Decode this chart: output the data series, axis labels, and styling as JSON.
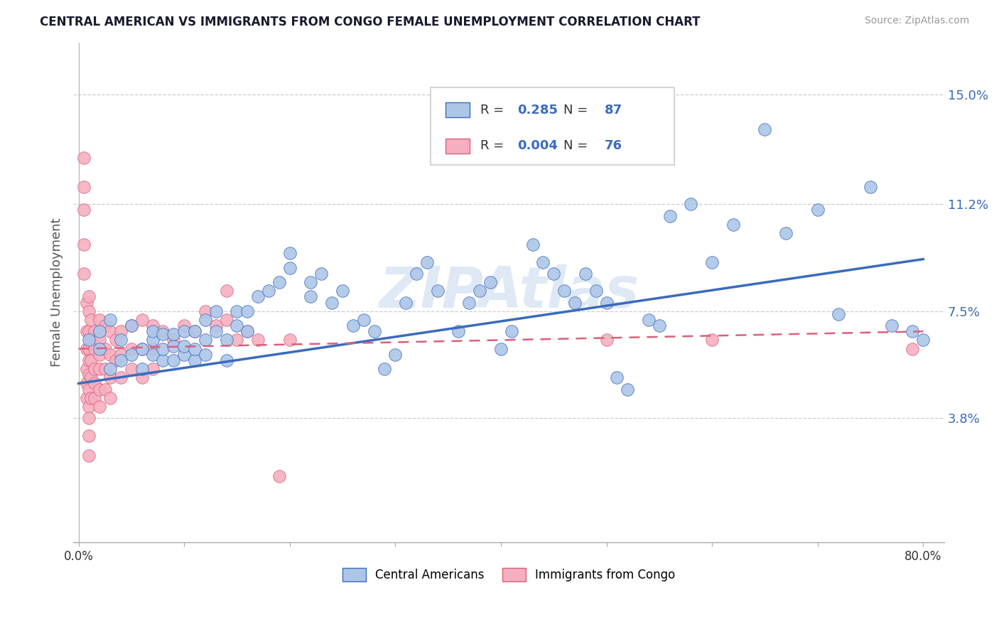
{
  "title": "CENTRAL AMERICAN VS IMMIGRANTS FROM CONGO FEMALE UNEMPLOYMENT CORRELATION CHART",
  "source": "Source: ZipAtlas.com",
  "ylabel": "Female Unemployment",
  "watermark": "ZIPAtlas",
  "series1_label": "Central Americans",
  "series2_label": "Immigrants from Congo",
  "series1_R": 0.285,
  "series1_N": 87,
  "series2_R": 0.004,
  "series2_N": 76,
  "series1_color": "#adc6e8",
  "series2_color": "#f5afc0",
  "trend1_color": "#3a6bbd",
  "trend2_color": "#d9607a",
  "background_color": "#ffffff",
  "grid_color": "#cccccc",
  "xlim": [
    -0.005,
    0.82
  ],
  "ylim": [
    -0.005,
    0.168
  ],
  "yticks": [
    0.038,
    0.075,
    0.112,
    0.15
  ],
  "ytick_labels": [
    "3.8%",
    "7.5%",
    "11.2%",
    "15.0%"
  ],
  "xtick_positions": [
    0.0,
    0.1,
    0.2,
    0.3,
    0.4,
    0.5,
    0.6,
    0.7,
    0.8
  ],
  "trend1_x_start": 0.0,
  "trend1_y_start": 0.05,
  "trend1_x_end": 0.8,
  "trend1_y_end": 0.093,
  "trend2_x_start": 0.0,
  "trend2_y_start": 0.062,
  "trend2_x_end": 0.8,
  "trend2_y_end": 0.068,
  "series1_x": [
    0.01,
    0.02,
    0.02,
    0.03,
    0.03,
    0.04,
    0.04,
    0.05,
    0.05,
    0.06,
    0.06,
    0.07,
    0.07,
    0.07,
    0.08,
    0.08,
    0.08,
    0.09,
    0.09,
    0.09,
    0.1,
    0.1,
    0.1,
    0.11,
    0.11,
    0.11,
    0.12,
    0.12,
    0.12,
    0.13,
    0.13,
    0.14,
    0.14,
    0.15,
    0.15,
    0.16,
    0.16,
    0.17,
    0.18,
    0.19,
    0.2,
    0.2,
    0.22,
    0.22,
    0.23,
    0.24,
    0.25,
    0.26,
    0.27,
    0.28,
    0.29,
    0.3,
    0.31,
    0.32,
    0.33,
    0.34,
    0.36,
    0.37,
    0.38,
    0.39,
    0.4,
    0.41,
    0.43,
    0.44,
    0.45,
    0.46,
    0.47,
    0.48,
    0.49,
    0.5,
    0.5,
    0.51,
    0.52,
    0.54,
    0.55,
    0.56,
    0.58,
    0.6,
    0.62,
    0.65,
    0.67,
    0.7,
    0.72,
    0.75,
    0.77,
    0.79,
    0.8
  ],
  "series1_y": [
    0.065,
    0.062,
    0.068,
    0.055,
    0.072,
    0.058,
    0.065,
    0.06,
    0.07,
    0.055,
    0.062,
    0.065,
    0.06,
    0.068,
    0.058,
    0.062,
    0.067,
    0.058,
    0.063,
    0.067,
    0.06,
    0.063,
    0.068,
    0.058,
    0.062,
    0.068,
    0.06,
    0.065,
    0.072,
    0.068,
    0.075,
    0.058,
    0.065,
    0.07,
    0.075,
    0.068,
    0.075,
    0.08,
    0.082,
    0.085,
    0.09,
    0.095,
    0.085,
    0.08,
    0.088,
    0.078,
    0.082,
    0.07,
    0.072,
    0.068,
    0.055,
    0.06,
    0.078,
    0.088,
    0.092,
    0.082,
    0.068,
    0.078,
    0.082,
    0.085,
    0.062,
    0.068,
    0.098,
    0.092,
    0.088,
    0.082,
    0.078,
    0.088,
    0.082,
    0.078,
    0.14,
    0.052,
    0.048,
    0.072,
    0.07,
    0.108,
    0.112,
    0.092,
    0.105,
    0.138,
    0.102,
    0.11,
    0.074,
    0.118,
    0.07,
    0.068,
    0.065
  ],
  "series2_x": [
    0.005,
    0.005,
    0.005,
    0.005,
    0.005,
    0.008,
    0.008,
    0.008,
    0.008,
    0.008,
    0.008,
    0.01,
    0.01,
    0.01,
    0.01,
    0.01,
    0.01,
    0.01,
    0.01,
    0.01,
    0.01,
    0.01,
    0.012,
    0.012,
    0.012,
    0.012,
    0.012,
    0.015,
    0.015,
    0.015,
    0.015,
    0.015,
    0.02,
    0.02,
    0.02,
    0.02,
    0.02,
    0.02,
    0.025,
    0.025,
    0.025,
    0.025,
    0.03,
    0.03,
    0.03,
    0.03,
    0.035,
    0.035,
    0.04,
    0.04,
    0.04,
    0.05,
    0.05,
    0.05,
    0.06,
    0.06,
    0.06,
    0.07,
    0.07,
    0.07,
    0.08,
    0.09,
    0.1,
    0.11,
    0.13,
    0.14,
    0.14,
    0.16,
    0.2,
    0.5,
    0.6,
    0.79,
    0.12,
    0.15,
    0.17,
    0.19
  ],
  "series2_y": [
    0.128,
    0.118,
    0.11,
    0.098,
    0.088,
    0.078,
    0.068,
    0.062,
    0.055,
    0.05,
    0.045,
    0.08,
    0.075,
    0.068,
    0.062,
    0.058,
    0.053,
    0.048,
    0.042,
    0.038,
    0.032,
    0.025,
    0.072,
    0.065,
    0.058,
    0.052,
    0.045,
    0.068,
    0.062,
    0.055,
    0.05,
    0.045,
    0.072,
    0.065,
    0.06,
    0.055,
    0.048,
    0.042,
    0.07,
    0.062,
    0.055,
    0.048,
    0.068,
    0.06,
    0.052,
    0.045,
    0.065,
    0.058,
    0.068,
    0.06,
    0.052,
    0.07,
    0.062,
    0.055,
    0.072,
    0.062,
    0.052,
    0.07,
    0.062,
    0.055,
    0.068,
    0.065,
    0.07,
    0.068,
    0.07,
    0.072,
    0.082,
    0.068,
    0.065,
    0.065,
    0.065,
    0.062,
    0.075,
    0.065,
    0.065,
    0.018
  ]
}
